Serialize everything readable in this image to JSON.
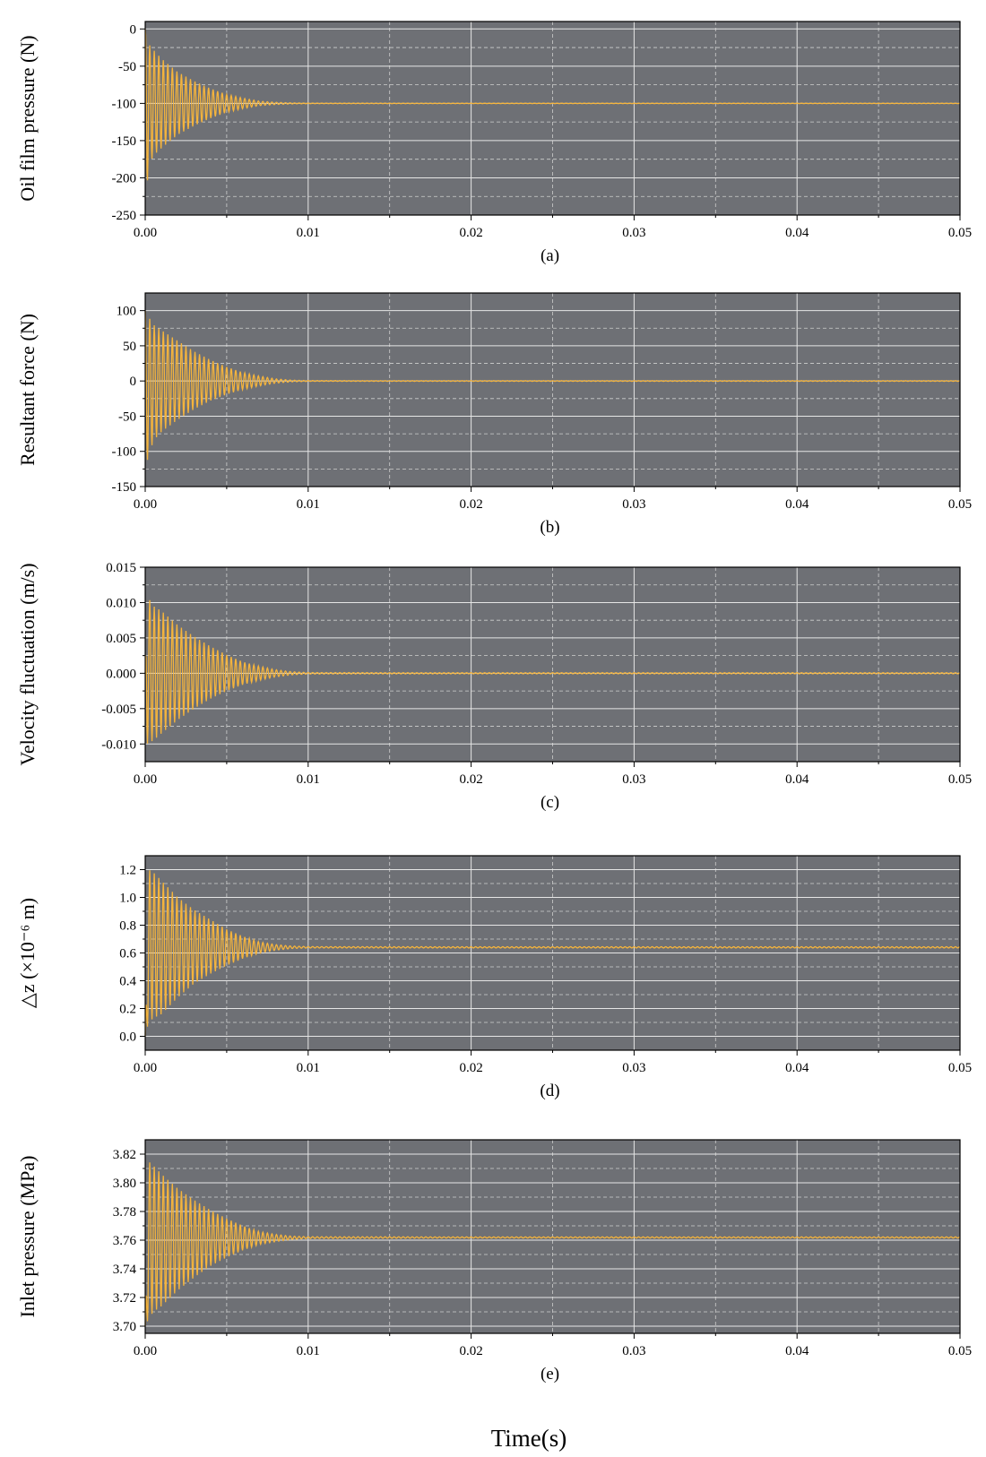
{
  "figure": {
    "shared_xlabel": "Time(s)"
  },
  "style": {
    "plot_bg": "#6e7075",
    "grid_major": "#e6e6e6",
    "grid_minor": "#cfcfcf",
    "line": "#f5b43c",
    "axis": "#000000"
  },
  "chart_data": [
    {
      "type": "line",
      "caption": "(a)",
      "ylabel": "Oil film pressure (N)",
      "xlabel": "",
      "xlim": [
        0,
        0.05
      ],
      "ylim": [
        -250,
        10
      ],
      "xticks": [
        0,
        0.01,
        0.02,
        0.03,
        0.04,
        0.05
      ],
      "xtick_labels": [
        "0.00",
        "0.01",
        "0.02",
        "0.03",
        "0.04",
        "0.05"
      ],
      "yticks": [
        0,
        -50,
        -100,
        -150,
        -200,
        -250
      ],
      "ytick_labels": [
        "0",
        "-50",
        "-100",
        "-150",
        "-200",
        "-250"
      ],
      "grid": true,
      "series": [
        {
          "x": [
            0,
            0.0001,
            0.0002,
            0.0005,
            0.001,
            0.002,
            0.003,
            0.004,
            0.005,
            0.006,
            0.007,
            0.008,
            0.009,
            0.01,
            0.02,
            0.03,
            0.04,
            0.05
          ],
          "y": [
            0,
            -215,
            -25,
            -170,
            -150,
            -132,
            -125,
            -118,
            -112,
            -108,
            -104,
            -102,
            -101,
            -100,
            -100,
            -100,
            -100,
            -100
          ],
          "envelope_upper": [
            0,
            -10,
            -20,
            -28,
            -40,
            -58,
            -70,
            -80,
            -88,
            -93,
            -97,
            -98.5,
            -99.3,
            -99.6,
            -99.7,
            -99.7,
            -99.7,
            -99.7
          ],
          "envelope_lower": [
            0,
            -215,
            -185,
            -170,
            -160,
            -142,
            -130,
            -120,
            -112,
            -107,
            -103,
            -101.5,
            -100.7,
            -100.4,
            -100.3,
            -100.3,
            -100.3,
            -100.3
          ],
          "steady_value": -100
        }
      ]
    },
    {
      "type": "line",
      "caption": "(b)",
      "ylabel": "Resultant force (N)",
      "xlabel": "",
      "xlim": [
        0,
        0.05
      ],
      "ylim": [
        -150,
        125
      ],
      "xticks": [
        0,
        0.01,
        0.02,
        0.03,
        0.04,
        0.05
      ],
      "xtick_labels": [
        "0.00",
        "0.01",
        "0.02",
        "0.03",
        "0.04",
        "0.05"
      ],
      "yticks": [
        100,
        50,
        0,
        -50,
        -100,
        -150
      ],
      "ytick_labels": [
        "100",
        "50",
        "0",
        "-50",
        "-100",
        "-150"
      ],
      "grid": true,
      "series": [
        {
          "x": [
            0,
            0.0001,
            0.0005,
            0.001,
            0.002,
            0.003,
            0.004,
            0.005,
            0.006,
            0.007,
            0.008,
            0.009,
            0.01,
            0.02,
            0.03,
            0.04,
            0.05
          ],
          "y": [
            100,
            -115,
            80,
            -75,
            55,
            -40,
            30,
            -20,
            12,
            -7,
            3,
            -1,
            0,
            0,
            0,
            0,
            0
          ],
          "envelope_upper": [
            100,
            95,
            80,
            72,
            57,
            42,
            30,
            20,
            12,
            7,
            3,
            1.2,
            0.6,
            0.5,
            0.5,
            0.5,
            0.5
          ],
          "envelope_lower": [
            -100,
            -115,
            -85,
            -72,
            -55,
            -40,
            -28,
            -19,
            -12,
            -7,
            -3,
            -1.2,
            -0.6,
            -0.5,
            -0.5,
            -0.5,
            -0.5
          ],
          "steady_value": 0
        }
      ]
    },
    {
      "type": "line",
      "caption": "(c)",
      "ylabel": "Velocity fluctuation (m/s)",
      "xlabel": "",
      "xlim": [
        0,
        0.05
      ],
      "ylim": [
        -0.0125,
        0.015
      ],
      "xticks": [
        0,
        0.01,
        0.02,
        0.03,
        0.04,
        0.05
      ],
      "xtick_labels": [
        "0.00",
        "0.01",
        "0.02",
        "0.03",
        "0.04",
        "0.05"
      ],
      "yticks": [
        0.015,
        0.01,
        0.005,
        0,
        -0.005,
        -0.01
      ],
      "ytick_labels": [
        "0.015",
        "0.010",
        "0.005",
        "0.000",
        "-0.005",
        "-0.010"
      ],
      "grid": true,
      "series": [
        {
          "x": [
            0,
            0.0001,
            0.0005,
            0.001,
            0.002,
            0.003,
            0.004,
            0.005,
            0.006,
            0.007,
            0.008,
            0.009,
            0.01,
            0.02,
            0.03,
            0.04,
            0.05
          ],
          "y": [
            0,
            0.011,
            -0.0095,
            0.009,
            -0.007,
            0.0052,
            -0.0038,
            0.0026,
            -0.0016,
            0.001,
            -0.0005,
            0.0002,
            0,
            0,
            0,
            0,
            0
          ],
          "envelope_upper": [
            0,
            0.011,
            0.0095,
            0.0088,
            0.0068,
            0.0052,
            0.0038,
            0.0026,
            0.0016,
            0.001,
            0.0005,
            0.00022,
            0.0001,
            8e-05,
            8e-05,
            8e-05,
            8e-05
          ],
          "envelope_lower": [
            0,
            -0.01,
            -0.0095,
            -0.0085,
            -0.0066,
            -0.005,
            -0.0036,
            -0.0025,
            -0.0016,
            -0.001,
            -0.0005,
            -0.00022,
            -0.0001,
            -8e-05,
            -8e-05,
            -8e-05,
            -8e-05
          ],
          "steady_value": 0
        }
      ]
    },
    {
      "type": "line",
      "caption": "(d)",
      "ylabel": "△z (×10⁻⁶ m)",
      "xlabel": "",
      "xlim": [
        0,
        0.05
      ],
      "ylim": [
        -0.1,
        1.3
      ],
      "xticks": [
        0,
        0.01,
        0.02,
        0.03,
        0.04,
        0.05
      ],
      "xtick_labels": [
        "0.00",
        "0.01",
        "0.02",
        "0.03",
        "0.04",
        "0.05"
      ],
      "yticks": [
        1.2,
        1.0,
        0.8,
        0.6,
        0.4,
        0.2,
        0.0
      ],
      "ytick_labels": [
        "1.2",
        "1.0",
        "0.8",
        "0.6",
        "0.4",
        "0.2",
        "0.0"
      ],
      "grid": true,
      "series": [
        {
          "x": [
            0,
            0.0002,
            0.0005,
            0.001,
            0.002,
            0.003,
            0.004,
            0.005,
            0.006,
            0.007,
            0.008,
            0.009,
            0.01,
            0.02,
            0.03,
            0.04,
            0.05
          ],
          "y": [
            0,
            1.2,
            0.15,
            1.12,
            1.0,
            0.92,
            0.84,
            0.78,
            0.72,
            0.68,
            0.66,
            0.65,
            0.645,
            0.64,
            0.64,
            0.64,
            0.64
          ],
          "envelope_upper": [
            0,
            1.2,
            1.18,
            1.12,
            1.0,
            0.91,
            0.84,
            0.77,
            0.72,
            0.68,
            0.66,
            0.65,
            0.646,
            0.645,
            0.645,
            0.645,
            0.645
          ],
          "envelope_lower": [
            0,
            0.1,
            0.13,
            0.16,
            0.28,
            0.38,
            0.45,
            0.51,
            0.56,
            0.6,
            0.62,
            0.632,
            0.636,
            0.636,
            0.636,
            0.636,
            0.636
          ],
          "steady_value": 0.64
        }
      ]
    },
    {
      "type": "line",
      "caption": "(e)",
      "ylabel": "Inlet pressure (MPa)",
      "xlabel": "",
      "xlim": [
        0,
        0.05
      ],
      "ylim": [
        3.695,
        3.83
      ],
      "xticks": [
        0,
        0.01,
        0.02,
        0.03,
        0.04,
        0.05
      ],
      "xtick_labels": [
        "0.00",
        "0.01",
        "0.02",
        "0.03",
        "0.04",
        "0.05"
      ],
      "yticks": [
        3.82,
        3.8,
        3.78,
        3.76,
        3.74,
        3.72,
        3.7
      ],
      "ytick_labels": [
        "3.82",
        "3.80",
        "3.78",
        "3.76",
        "3.74",
        "3.72",
        "3.70"
      ],
      "grid": true,
      "series": [
        {
          "x": [
            0,
            0.0002,
            0.0005,
            0.001,
            0.002,
            0.003,
            0.004,
            0.005,
            0.006,
            0.007,
            0.008,
            0.009,
            0.01,
            0.02,
            0.03,
            0.04,
            0.05
          ],
          "y": [
            3.7,
            3.815,
            3.71,
            3.806,
            3.797,
            3.789,
            3.782,
            3.776,
            3.771,
            3.767,
            3.764,
            3.763,
            3.762,
            3.762,
            3.762,
            3.762,
            3.762
          ],
          "envelope_upper": [
            3.7,
            3.815,
            3.812,
            3.806,
            3.796,
            3.788,
            3.781,
            3.775,
            3.77,
            3.766,
            3.764,
            3.7628,
            3.7624,
            3.7623,
            3.7623,
            3.7623,
            3.7623
          ],
          "envelope_lower": [
            3.7,
            3.705,
            3.71,
            3.714,
            3.725,
            3.734,
            3.742,
            3.748,
            3.753,
            3.757,
            3.759,
            3.7605,
            3.7612,
            3.7615,
            3.7615,
            3.7615,
            3.7615
          ],
          "steady_value": 3.762
        }
      ]
    }
  ]
}
